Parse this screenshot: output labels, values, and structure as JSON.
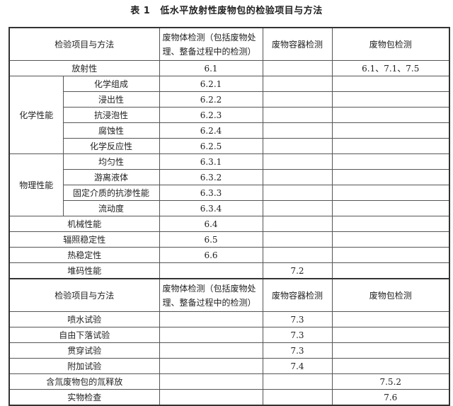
{
  "title": {
    "number": "表 1",
    "text": "低水平放射性废物包的检验项目与方法"
  },
  "header": {
    "item": "检验项目与方法",
    "waste_form": "废物体检测（包括废物处理、整备过程中的检测）",
    "container": "废物容器检测",
    "package": "废物包检测"
  },
  "rows": {
    "radioactivity": {
      "label": "放射性",
      "waste_form": "6.1",
      "container": "",
      "package": "6.1、7.1、7.5"
    },
    "chemical": {
      "group": "化学性能",
      "items": [
        {
          "label": "化学组成",
          "waste_form": "6.2.1"
        },
        {
          "label": "浸出性",
          "waste_form": "6.2.2"
        },
        {
          "label": "抗浸泡性",
          "waste_form": "6.2.3"
        },
        {
          "label": "腐蚀性",
          "waste_form": "6.2.4"
        },
        {
          "label": "化学反应性",
          "waste_form": "6.2.5"
        }
      ]
    },
    "physical": {
      "group": "物理性能",
      "items": [
        {
          "label": "均匀性",
          "waste_form": "6.3.1"
        },
        {
          "label": "游离液体",
          "waste_form": "6.3.2"
        },
        {
          "label": "固定介质的抗渗性能",
          "waste_form": "6.3.3"
        },
        {
          "label": "流动度",
          "waste_form": "6.3.4"
        }
      ]
    },
    "others": [
      {
        "label": "机械性能",
        "waste_form": "6.4",
        "container": "",
        "package": ""
      },
      {
        "label": "辐照稳定性",
        "waste_form": "6.5",
        "container": "",
        "package": ""
      },
      {
        "label": "热稳定性",
        "waste_form": "6.6",
        "container": "",
        "package": ""
      },
      {
        "label": "堆码性能",
        "waste_form": "",
        "container": "7.2",
        "package": ""
      }
    ],
    "tests": [
      {
        "label": "喷水试验",
        "waste_form": "",
        "container": "7.3",
        "package": ""
      },
      {
        "label": "自由下落试验",
        "waste_form": "",
        "container": "7.3",
        "package": ""
      },
      {
        "label": "贯穿试验",
        "waste_form": "",
        "container": "7.3",
        "package": ""
      },
      {
        "label": "附加试验",
        "waste_form": "",
        "container": "7.4",
        "package": ""
      },
      {
        "label": "含氚废物包的氚释放",
        "waste_form": "",
        "container": "",
        "package": "7.5.2"
      },
      {
        "label": "实物检查",
        "waste_form": "",
        "container": "",
        "package": "7.6"
      }
    ]
  }
}
